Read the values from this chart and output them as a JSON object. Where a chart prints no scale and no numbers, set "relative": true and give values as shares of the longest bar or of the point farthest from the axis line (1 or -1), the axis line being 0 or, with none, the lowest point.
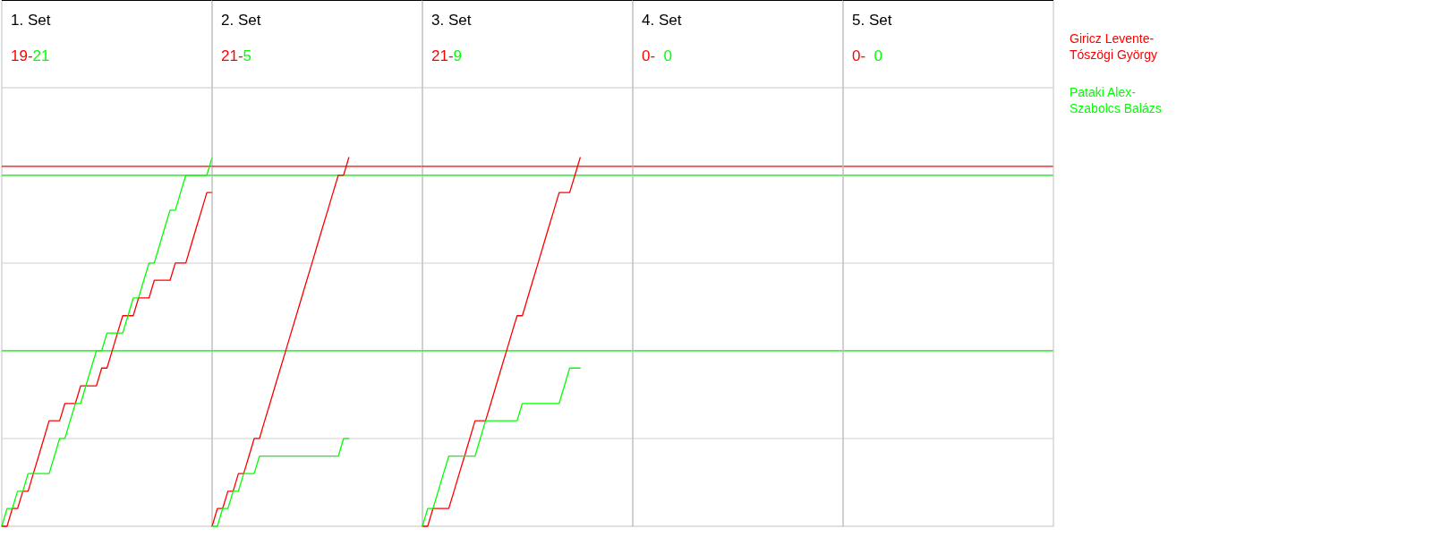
{
  "chart_data": [
    {
      "type": "line",
      "relative": true,
      "title": "1. Set",
      "annotations": [
        "19-",
        "21"
      ],
      "categories": [
        null,
        null,
        null,
        null,
        null,
        null,
        null,
        null,
        null,
        null,
        null,
        null,
        null,
        null,
        null,
        null,
        null,
        null,
        null,
        null,
        null,
        null,
        null,
        null,
        null,
        null,
        null,
        null,
        null,
        null,
        null,
        null,
        null,
        null,
        null,
        null,
        null,
        null,
        null,
        null,
        null
      ],
      "grid": "y",
      "series": [
        {
          "name": "Giricz Levente-\nTószögi György",
          "color": "#ff0000",
          "values": [
            0,
            0,
            0.048,
            0.048,
            0.095,
            0.095,
            0.143,
            0.19,
            0.238,
            0.286,
            0.286,
            0.286,
            0.333,
            0.333,
            0.333,
            0.381,
            0.381,
            0.381,
            0.381,
            0.429,
            0.429,
            0.476,
            0.524,
            0.571,
            0.571,
            0.571,
            0.619,
            0.619,
            0.619,
            0.667,
            0.667,
            0.667,
            0.667,
            0.714,
            0.714,
            0.714,
            0.762,
            0.81,
            0.857,
            0.905,
            0.905
          ]
        },
        {
          "name": "Pataki Alex-\nSzabolcs Balázs",
          "color": "#00ff00",
          "values": [
            0,
            0.048,
            0.048,
            0.095,
            0.095,
            0.143,
            0.143,
            0.143,
            0.143,
            0.143,
            0.19,
            0.238,
            0.238,
            0.286,
            0.333,
            0.333,
            0.381,
            0.429,
            0.476,
            0.476,
            0.524,
            0.524,
            0.524,
            0.524,
            0.571,
            0.619,
            0.619,
            0.667,
            0.714,
            0.714,
            0.762,
            0.81,
            0.857,
            0.857,
            0.905,
            0.952,
            0.952,
            0.952,
            0.952,
            0.952,
            1
          ]
        }
      ],
      "ref_lines": [
        {
          "axis": "y",
          "value": 0.976,
          "color": "#ff0000"
        },
        {
          "axis": "y",
          "value": 0.952,
          "color": "#00ff00"
        },
        {
          "axis": "y",
          "value": 0.476,
          "color": "#00ff00"
        }
      ]
    },
    {
      "type": "line",
      "relative": true,
      "title": "2. Set",
      "annotations": [
        "21-",
        "5"
      ],
      "categories": [
        null,
        null,
        null,
        null,
        null,
        null,
        null,
        null,
        null,
        null,
        null,
        null,
        null,
        null,
        null,
        null,
        null,
        null,
        null,
        null,
        null,
        null,
        null,
        null,
        null,
        null,
        null
      ],
      "grid": "y",
      "series": [
        {
          "color": "#ff0000",
          "values": [
            0,
            0.048,
            0.048,
            0.095,
            0.095,
            0.143,
            0.143,
            0.19,
            0.238,
            0.238,
            0.286,
            0.333,
            0.381,
            0.429,
            0.476,
            0.524,
            0.571,
            0.619,
            0.667,
            0.714,
            0.762,
            0.81,
            0.857,
            0.905,
            0.952,
            0.952,
            1
          ]
        },
        {
          "color": "#00ff00",
          "values": [
            0,
            0,
            0.048,
            0.048,
            0.095,
            0.095,
            0.143,
            0.143,
            0.143,
            0.19,
            0.19,
            0.19,
            0.19,
            0.19,
            0.19,
            0.19,
            0.19,
            0.19,
            0.19,
            0.19,
            0.19,
            0.19,
            0.19,
            0.19,
            0.19,
            0.238,
            0.238
          ]
        }
      ],
      "ref_lines": [
        {
          "axis": "y",
          "value": 0.976,
          "color": "#ff0000"
        },
        {
          "axis": "y",
          "value": 0.952,
          "color": "#00ff00"
        },
        {
          "axis": "y",
          "value": 0.476,
          "color": "#00ff00"
        }
      ]
    },
    {
      "type": "line",
      "relative": true,
      "title": "3. Set",
      "annotations": [
        "21-",
        "9"
      ],
      "categories": [
        null,
        null,
        null,
        null,
        null,
        null,
        null,
        null,
        null,
        null,
        null,
        null,
        null,
        null,
        null,
        null,
        null,
        null,
        null,
        null,
        null,
        null,
        null,
        null,
        null,
        null,
        null,
        null,
        null,
        null,
        null
      ],
      "grid": "y",
      "series": [
        {
          "color": "#ff0000",
          "values": [
            0,
            0,
            0.048,
            0.048,
            0.048,
            0.048,
            0.095,
            0.143,
            0.19,
            0.238,
            0.286,
            0.286,
            0.286,
            0.333,
            0.381,
            0.429,
            0.476,
            0.524,
            0.571,
            0.571,
            0.619,
            0.667,
            0.714,
            0.762,
            0.81,
            0.857,
            0.905,
            0.905,
            0.905,
            0.952,
            1
          ]
        },
        {
          "color": "#00ff00",
          "values": [
            0,
            0.048,
            0.048,
            0.095,
            0.143,
            0.19,
            0.19,
            0.19,
            0.19,
            0.19,
            0.19,
            0.238,
            0.286,
            0.286,
            0.286,
            0.286,
            0.286,
            0.286,
            0.286,
            0.333,
            0.333,
            0.333,
            0.333,
            0.333,
            0.333,
            0.333,
            0.333,
            0.381,
            0.429,
            0.429,
            0.429
          ]
        }
      ],
      "ref_lines": [
        {
          "axis": "y",
          "value": 0.976,
          "color": "#ff0000"
        },
        {
          "axis": "y",
          "value": 0.952,
          "color": "#00ff00"
        },
        {
          "axis": "y",
          "value": 0.476,
          "color": "#00ff00"
        }
      ]
    },
    {
      "type": "other",
      "title": "4. Set",
      "annotations": [
        "0-  ",
        "0"
      ],
      "colors": [
        "#ff0000",
        "#00ff00"
      ]
    },
    {
      "type": "other",
      "title": "5. Set",
      "annotations": [
        "0-  ",
        "0"
      ],
      "colors": [
        "#ff0000",
        "#00ff00"
      ]
    }
  ]
}
